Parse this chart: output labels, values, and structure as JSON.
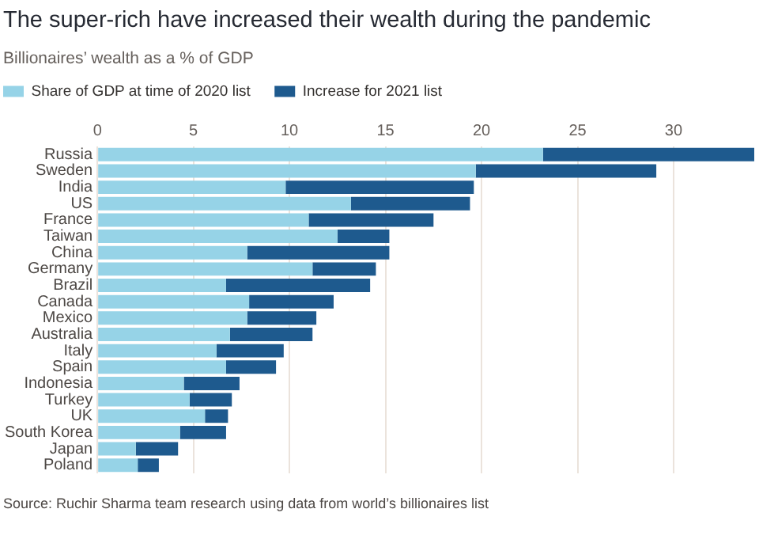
{
  "chart_data": {
    "type": "bar",
    "orientation": "horizontal",
    "stacked": true,
    "title": "The super-rich have increased their wealth during the pandemic",
    "subtitle": "Billionaires’ wealth as a % of GDP",
    "categories": [
      "Russia",
      "Sweden",
      "India",
      "US",
      "France",
      "Taiwan",
      "China",
      "Germany",
      "Brazil",
      "Canada",
      "Mexico",
      "Australia",
      "Italy",
      "Spain",
      "Indonesia",
      "Turkey",
      "UK",
      "South Korea",
      "Japan",
      "Poland"
    ],
    "series": [
      {
        "name": "Share of GDP at time of 2020 list",
        "color": "#96d3e7",
        "values": [
          23.2,
          19.7,
          9.8,
          13.2,
          11.0,
          12.5,
          7.8,
          11.2,
          6.7,
          7.9,
          7.8,
          6.9,
          6.2,
          6.7,
          4.5,
          4.8,
          5.6,
          4.3,
          2.0,
          2.1
        ]
      },
      {
        "name": "Increase for 2021 list",
        "color": "#1e5a8e",
        "values": [
          11.0,
          9.4,
          9.8,
          6.2,
          6.5,
          2.7,
          7.4,
          3.3,
          7.5,
          4.4,
          3.6,
          4.3,
          3.5,
          2.6,
          2.9,
          2.2,
          1.2,
          2.4,
          2.2,
          1.1
        ]
      }
    ],
    "xlim": [
      0,
      34.2
    ],
    "xticks": [
      0,
      5,
      10,
      15,
      20,
      25,
      30
    ],
    "grid": "x",
    "legend": "top left",
    "annotations": [
      "Source: Ruchir Sharma team research using data from world’s billionaires list"
    ]
  }
}
